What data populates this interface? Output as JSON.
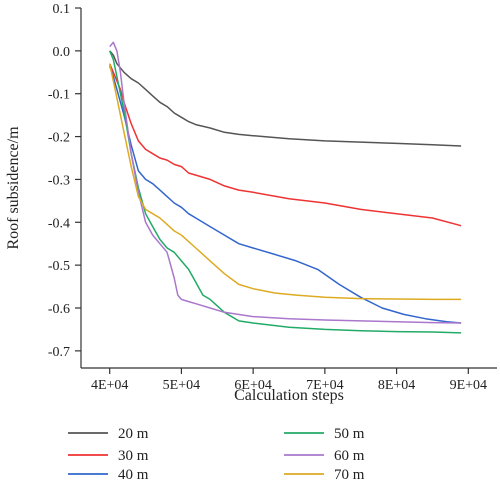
{
  "chart_data": {
    "type": "line",
    "title": "",
    "xlabel": "Calculation steps",
    "ylabel": "Roof subsidence/m",
    "xlim": [
      36000,
      94000
    ],
    "ylim": [
      -0.74,
      0.1
    ],
    "x_ticks": [
      40000,
      50000,
      60000,
      70000,
      80000,
      90000
    ],
    "x_tick_labels": [
      "4E+04",
      "5E+04",
      "6E+04",
      "7E+04",
      "8E+04",
      "9E+04"
    ],
    "y_ticks": [
      0.1,
      0.0,
      -0.1,
      -0.2,
      -0.3,
      -0.4,
      -0.5,
      -0.6,
      -0.7
    ],
    "y_tick_labels": [
      "0.1",
      "0.0",
      "-0.1",
      "-0.2",
      "-0.3",
      "-0.4",
      "-0.5",
      "-0.6",
      "-0.7"
    ],
    "grid": false,
    "legend_position": "bottom",
    "series": [
      {
        "name": "20 m",
        "color": "#555555",
        "points": [
          [
            40000,
            -0.0
          ],
          [
            40500,
            -0.01
          ],
          [
            41000,
            -0.03
          ],
          [
            42000,
            -0.05
          ],
          [
            43000,
            -0.065
          ],
          [
            44000,
            -0.075
          ],
          [
            45000,
            -0.09
          ],
          [
            46000,
            -0.105
          ],
          [
            47000,
            -0.12
          ],
          [
            48000,
            -0.13
          ],
          [
            49000,
            -0.145
          ],
          [
            50000,
            -0.155
          ],
          [
            51000,
            -0.165
          ],
          [
            52000,
            -0.172
          ],
          [
            54000,
            -0.18
          ],
          [
            56000,
            -0.19
          ],
          [
            58000,
            -0.195
          ],
          [
            60000,
            -0.198
          ],
          [
            65000,
            -0.205
          ],
          [
            70000,
            -0.21
          ],
          [
            75000,
            -0.213
          ],
          [
            80000,
            -0.216
          ],
          [
            85000,
            -0.219
          ],
          [
            89000,
            -0.222
          ]
        ]
      },
      {
        "name": "30 m",
        "color": "#ee3333",
        "points": [
          [
            40000,
            -0.03
          ],
          [
            40500,
            -0.05
          ],
          [
            41000,
            -0.07
          ],
          [
            41500,
            -0.09
          ],
          [
            42000,
            -0.12
          ],
          [
            43000,
            -0.17
          ],
          [
            44000,
            -0.21
          ],
          [
            45000,
            -0.23
          ],
          [
            46000,
            -0.24
          ],
          [
            47000,
            -0.25
          ],
          [
            48000,
            -0.255
          ],
          [
            49000,
            -0.265
          ],
          [
            50000,
            -0.27
          ],
          [
            51000,
            -0.285
          ],
          [
            52000,
            -0.29
          ],
          [
            54000,
            -0.3
          ],
          [
            56000,
            -0.315
          ],
          [
            58000,
            -0.325
          ],
          [
            60000,
            -0.33
          ],
          [
            65000,
            -0.345
          ],
          [
            70000,
            -0.355
          ],
          [
            75000,
            -0.37
          ],
          [
            80000,
            -0.38
          ],
          [
            85000,
            -0.39
          ],
          [
            89000,
            -0.408
          ]
        ]
      },
      {
        "name": "40 m",
        "color": "#3366cc",
        "points": [
          [
            40000,
            -0.035
          ],
          [
            40500,
            -0.06
          ],
          [
            41000,
            -0.09
          ],
          [
            42000,
            -0.15
          ],
          [
            43000,
            -0.22
          ],
          [
            44000,
            -0.28
          ],
          [
            45000,
            -0.3
          ],
          [
            46000,
            -0.31
          ],
          [
            47000,
            -0.325
          ],
          [
            48000,
            -0.34
          ],
          [
            49000,
            -0.355
          ],
          [
            50000,
            -0.365
          ],
          [
            51000,
            -0.38
          ],
          [
            52000,
            -0.39
          ],
          [
            54000,
            -0.41
          ],
          [
            56000,
            -0.43
          ],
          [
            58000,
            -0.45
          ],
          [
            60000,
            -0.46
          ],
          [
            63000,
            -0.475
          ],
          [
            66000,
            -0.49
          ],
          [
            69000,
            -0.51
          ],
          [
            72000,
            -0.545
          ],
          [
            75000,
            -0.575
          ],
          [
            78000,
            -0.6
          ],
          [
            81000,
            -0.615
          ],
          [
            84000,
            -0.625
          ],
          [
            87000,
            -0.632
          ],
          [
            89000,
            -0.635
          ]
        ]
      },
      {
        "name": "50 m",
        "color": "#22aa66",
        "points": [
          [
            40000,
            0.0
          ],
          [
            40500,
            -0.02
          ],
          [
            41000,
            -0.06
          ],
          [
            42000,
            -0.14
          ],
          [
            43000,
            -0.24
          ],
          [
            44000,
            -0.32
          ],
          [
            45000,
            -0.38
          ],
          [
            46000,
            -0.41
          ],
          [
            47000,
            -0.44
          ],
          [
            48000,
            -0.46
          ],
          [
            49000,
            -0.47
          ],
          [
            50000,
            -0.49
          ],
          [
            51000,
            -0.51
          ],
          [
            52000,
            -0.54
          ],
          [
            53000,
            -0.57
          ],
          [
            54000,
            -0.58
          ],
          [
            55000,
            -0.595
          ],
          [
            56000,
            -0.61
          ],
          [
            58000,
            -0.63
          ],
          [
            60000,
            -0.635
          ],
          [
            65000,
            -0.645
          ],
          [
            70000,
            -0.65
          ],
          [
            75000,
            -0.653
          ],
          [
            80000,
            -0.655
          ],
          [
            85000,
            -0.656
          ],
          [
            89000,
            -0.658
          ]
        ]
      },
      {
        "name": "60 m",
        "color": "#aa77cc",
        "points": [
          [
            40000,
            0.01
          ],
          [
            40500,
            0.02
          ],
          [
            41000,
            0.0
          ],
          [
            41500,
            -0.05
          ],
          [
            42000,
            -0.12
          ],
          [
            43000,
            -0.24
          ],
          [
            44000,
            -0.33
          ],
          [
            45000,
            -0.4
          ],
          [
            46000,
            -0.43
          ],
          [
            47000,
            -0.45
          ],
          [
            48000,
            -0.47
          ],
          [
            49000,
            -0.53
          ],
          [
            49500,
            -0.57
          ],
          [
            50000,
            -0.58
          ],
          [
            51000,
            -0.585
          ],
          [
            52000,
            -0.59
          ],
          [
            54000,
            -0.6
          ],
          [
            56000,
            -0.61
          ],
          [
            60000,
            -0.62
          ],
          [
            65000,
            -0.625
          ],
          [
            70000,
            -0.628
          ],
          [
            75000,
            -0.63
          ],
          [
            80000,
            -0.632
          ],
          [
            85000,
            -0.634
          ],
          [
            89000,
            -0.635
          ]
        ]
      },
      {
        "name": "70 m",
        "color": "#ddaa22",
        "points": [
          [
            40000,
            -0.03
          ],
          [
            40500,
            -0.07
          ],
          [
            41000,
            -0.11
          ],
          [
            42000,
            -0.19
          ],
          [
            43000,
            -0.27
          ],
          [
            44000,
            -0.34
          ],
          [
            45000,
            -0.37
          ],
          [
            46000,
            -0.38
          ],
          [
            47000,
            -0.39
          ],
          [
            48000,
            -0.405
          ],
          [
            49000,
            -0.42
          ],
          [
            50000,
            -0.43
          ],
          [
            51000,
            -0.445
          ],
          [
            52000,
            -0.46
          ],
          [
            54000,
            -0.49
          ],
          [
            56000,
            -0.52
          ],
          [
            58000,
            -0.545
          ],
          [
            60000,
            -0.555
          ],
          [
            63000,
            -0.565
          ],
          [
            66000,
            -0.57
          ],
          [
            70000,
            -0.575
          ],
          [
            75000,
            -0.578
          ],
          [
            80000,
            -0.579
          ],
          [
            85000,
            -0.58
          ],
          [
            89000,
            -0.58
          ]
        ]
      }
    ]
  }
}
